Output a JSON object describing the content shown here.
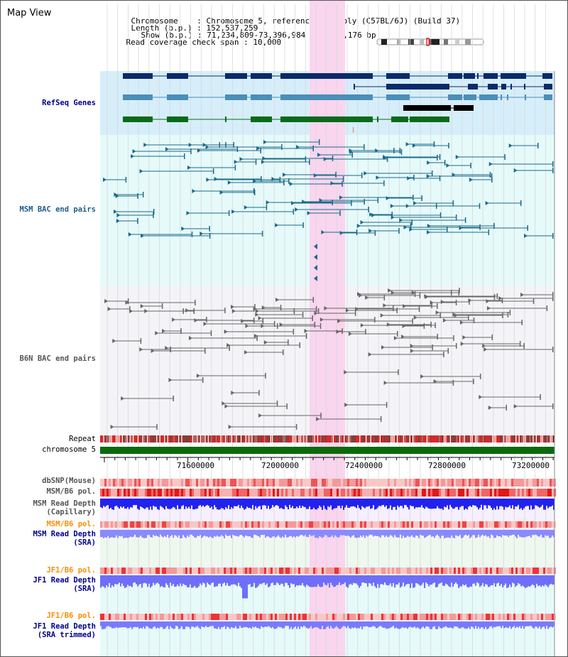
{
  "title": "Map View",
  "header": {
    "chromosome_key": "Chromosome    ",
    "chromosome_val": "Chromosome 5, reference assembly (C57BL/6J) (Build 37)",
    "length_key": "Length (b.p.)",
    "length_val": "152,537,259",
    "show_key": "Show (b.p.)",
    "show_val": "71,234,809-73,396,984 : 2,162,176 bp",
    "coverage_key": "Read coverage check span",
    "coverage_val": "10,000"
  },
  "tracks": {
    "refseq": "RefSeq Genes",
    "msm_bac": "MSM BAC end pairs",
    "b6n_bac": "B6N BAC end pairs",
    "repeat": "Repeat",
    "chromosome": "chromosome 5",
    "dbsnp": "dbSNP(Mouse)",
    "msm_b6_pol_1": "MSM/B6 pol.",
    "msm_read_depth_cap_1": "MSM Read Depth",
    "msm_read_depth_cap_2": "(Capillary)",
    "msm_b6_pol_2": "MSM/B6 pol.",
    "msm_read_depth_sra_1": "MSM Read Depth",
    "msm_read_depth_sra_2": "(SRA)",
    "jf1_b6_pol_1": "JF1/B6 pol.",
    "jf1_read_depth_sra_1": "JF1 Read Depth",
    "jf1_read_depth_sra_2": "(SRA)",
    "jf1_b6_pol_2": "JF1/B6 pol.",
    "jf1_read_depth_trim_1": "JF1 Read Depth",
    "jf1_read_depth_trim_2": "(SRA trimmed)"
  },
  "axis": {
    "ticks": [
      "71600000",
      "72000000",
      "72400000",
      "72800000",
      "73200000"
    ]
  },
  "colors": {
    "refseq_bg": "#d6eefa",
    "bac_bg": "#e6fafa",
    "b6n_bg": "#f4f4f8",
    "highlight": "#f9d5ee",
    "navy_gene": "#0a2a6a",
    "steel_gene": "#4a8fb8",
    "green_gene": "#0a6a1a",
    "msm_bac": "#1a6a8a",
    "b6n_bac": "#666666",
    "chromosome": "#0a6a0a",
    "depth_blue": "#2222ee",
    "depth_lightblue": "#7a7aff"
  }
}
